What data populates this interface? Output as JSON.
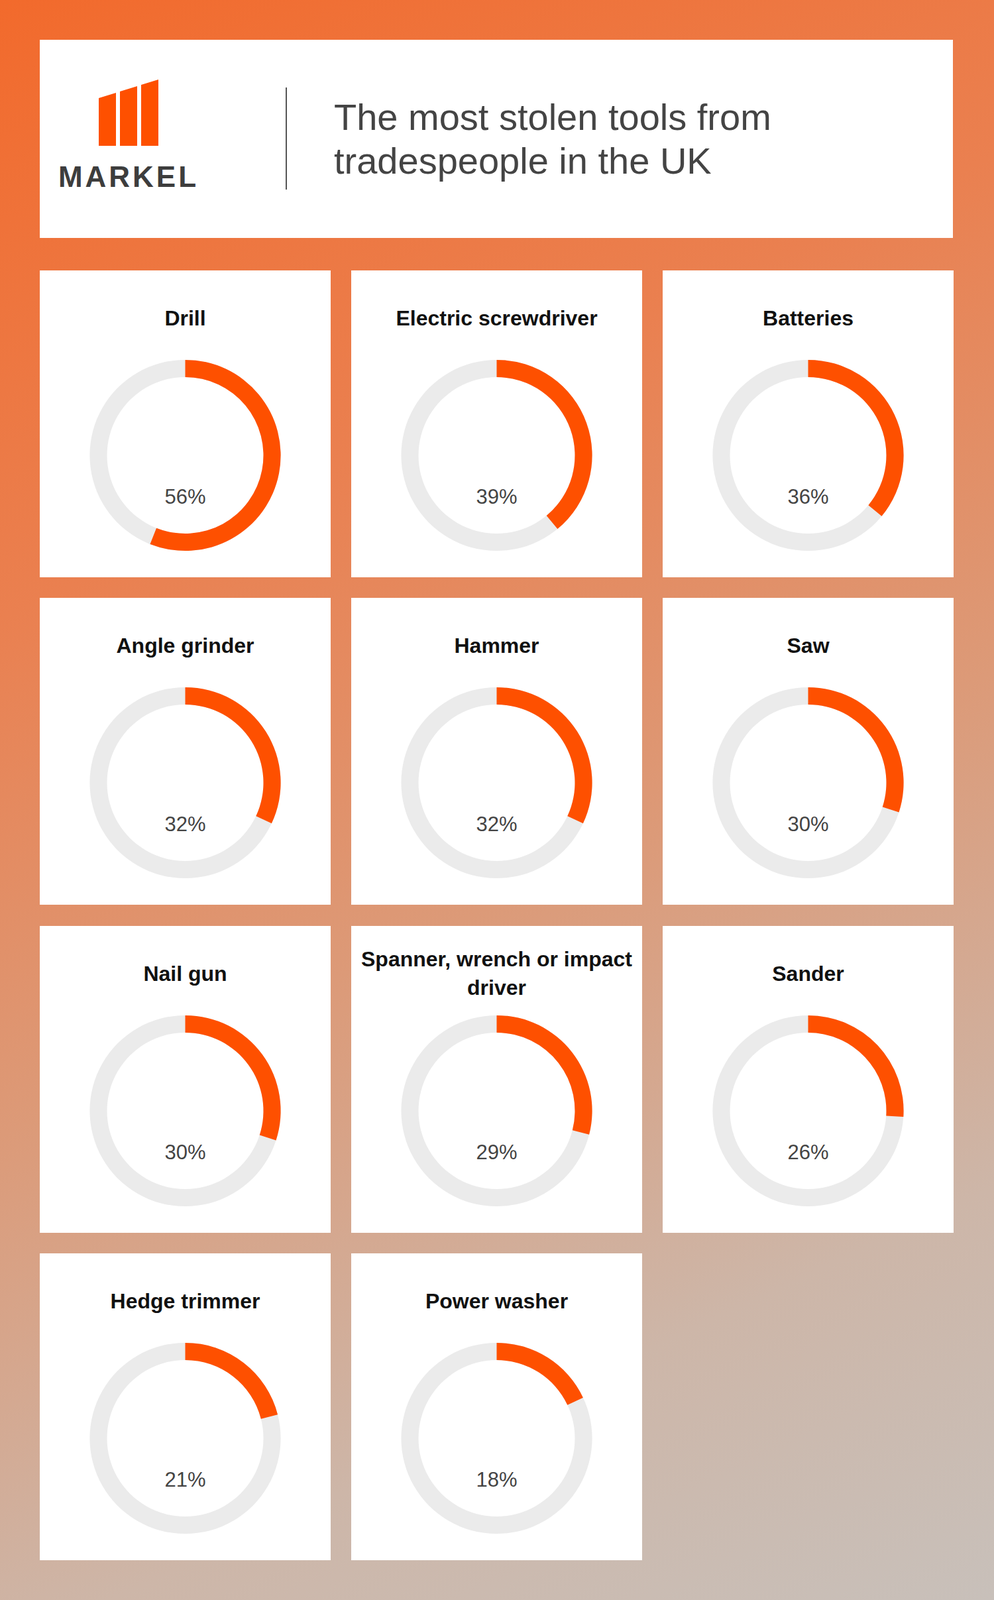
{
  "title": "The most stolen tools from tradespeople in the UK",
  "logo": "MARKEL",
  "chart_data": [
    {
      "type": "donut",
      "title": "Drill",
      "values": [
        56
      ],
      "value_labels": [
        "56%"
      ],
      "ylim": [
        0,
        100
      ],
      "color": "#fe5000",
      "data_labels": true,
      "tick_labels": false
    },
    {
      "type": "donut",
      "title": "Electric screwdriver",
      "values": [
        39
      ],
      "value_labels": [
        "39%"
      ],
      "ylim": [
        0,
        100
      ],
      "color": "#fe5000",
      "data_labels": true,
      "tick_labels": false
    },
    {
      "type": "donut",
      "title": "Batteries",
      "values": [
        36
      ],
      "value_labels": [
        "36%"
      ],
      "ylim": [
        0,
        100
      ],
      "color": "#fe5000",
      "data_labels": true,
      "tick_labels": false
    },
    {
      "type": "donut",
      "title": "Angle grinder",
      "values": [
        32
      ],
      "value_labels": [
        "32%"
      ],
      "ylim": [
        0,
        100
      ],
      "color": "#fe5000",
      "data_labels": true,
      "tick_labels": false
    },
    {
      "type": "donut",
      "title": "Hammer",
      "values": [
        32
      ],
      "value_labels": [
        "32%"
      ],
      "ylim": [
        0,
        100
      ],
      "color": "#fe5000",
      "data_labels": true,
      "tick_labels": false
    },
    {
      "type": "donut",
      "title": "Saw",
      "values": [
        30
      ],
      "value_labels": [
        "30%"
      ],
      "ylim": [
        0,
        100
      ],
      "color": "#fe5000",
      "data_labels": true,
      "tick_labels": false
    },
    {
      "type": "donut",
      "title": "Nail gun",
      "values": [
        30
      ],
      "value_labels": [
        "30%"
      ],
      "ylim": [
        0,
        100
      ],
      "color": "#fe5000",
      "data_labels": true,
      "tick_labels": false
    },
    {
      "type": "donut",
      "title": "Spanner, wrench or impact driver",
      "values": [
        29
      ],
      "value_labels": [
        "29%"
      ],
      "ylim": [
        0,
        100
      ],
      "color": "#fe5000",
      "data_labels": true,
      "tick_labels": false
    },
    {
      "type": "donut",
      "title": "Sander",
      "values": [
        26
      ],
      "value_labels": [
        "26%"
      ],
      "ylim": [
        0,
        100
      ],
      "color": "#fe5000",
      "data_labels": true,
      "tick_labels": false
    },
    {
      "type": "donut",
      "title": "Hedge trimmer",
      "values": [
        21
      ],
      "value_labels": [
        "21%"
      ],
      "ylim": [
        0,
        100
      ],
      "color": "#fe5000",
      "data_labels": true,
      "tick_labels": false
    },
    {
      "type": "donut",
      "title": "Power washer",
      "values": [
        18
      ],
      "value_labels": [
        "18%"
      ],
      "ylim": [
        0,
        100
      ],
      "color": "#fe5000",
      "data_labels": true,
      "tick_labels": false
    }
  ]
}
